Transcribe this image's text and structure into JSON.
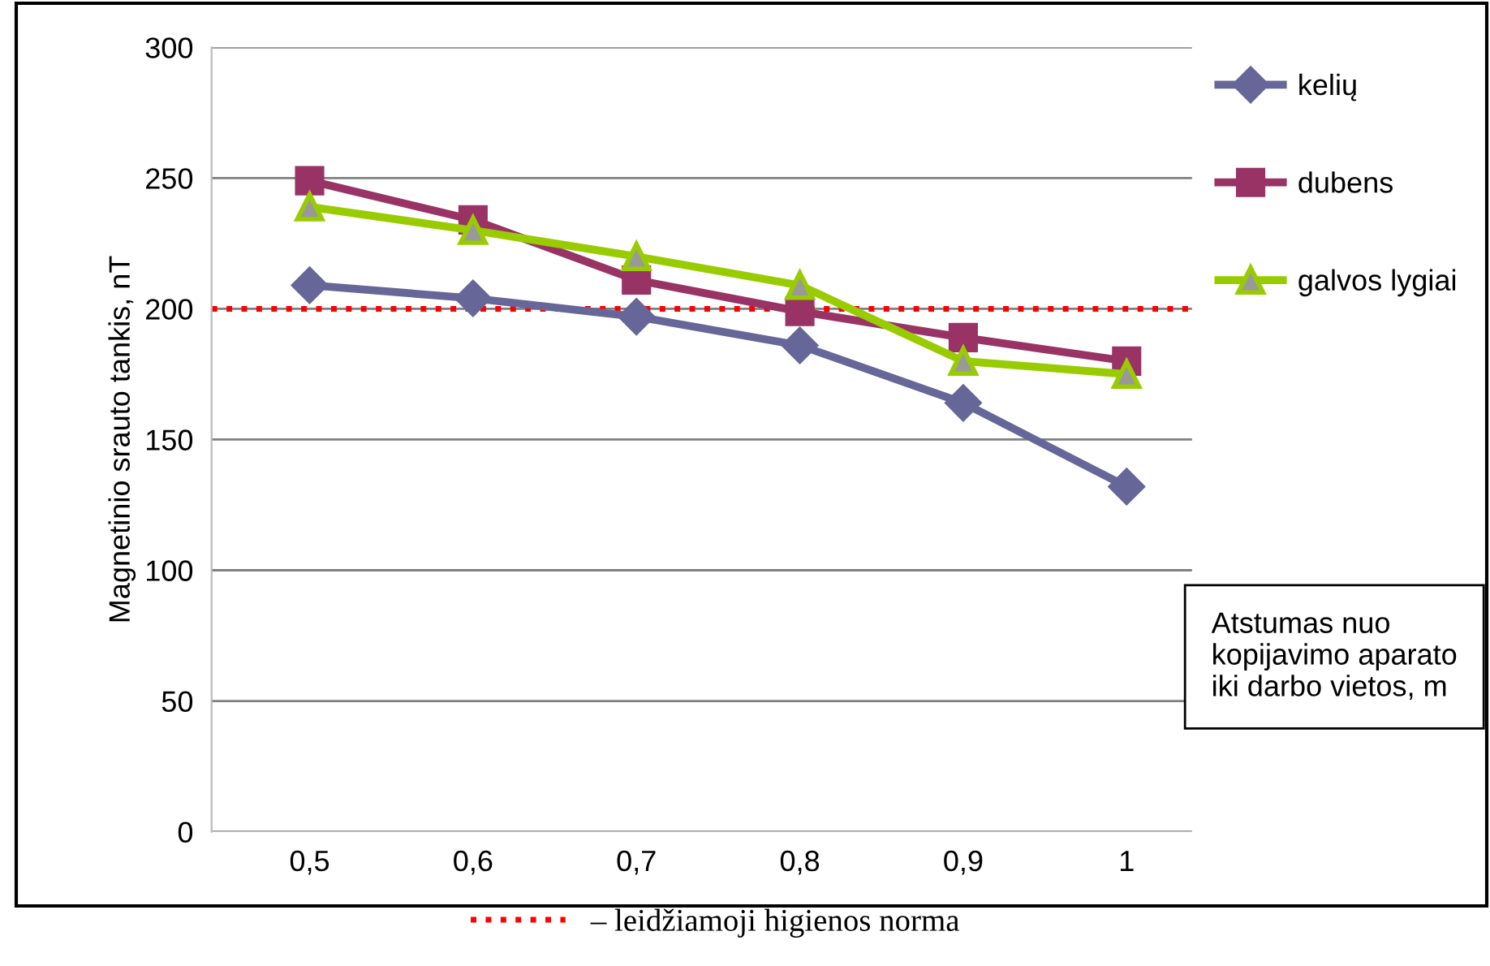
{
  "chart_data": {
    "type": "line",
    "ylabel": "Magnetinio srauto tankis, nT",
    "xlabel": "Atstumas nuo kopijavimo aparato iki darbo vietos, m",
    "categories": [
      "0,5",
      "0,6",
      "0,7",
      "0,8",
      "0,9",
      "1"
    ],
    "series": [
      {
        "name": "kelių",
        "color": "#666699",
        "marker": "diamond",
        "values": [
          209,
          204,
          197,
          186,
          164,
          132
        ]
      },
      {
        "name": "dubens",
        "color": "#993366",
        "marker": "square",
        "values": [
          249,
          234,
          211,
          199,
          189,
          180
        ]
      },
      {
        "name": "galvos lygiai",
        "color": "#99cc00",
        "marker": "triangle",
        "values": [
          239,
          230,
          220,
          209,
          180,
          175
        ]
      }
    ],
    "ylim": [
      0,
      300
    ],
    "yticks": [
      0,
      50,
      100,
      150,
      200,
      250,
      300
    ],
    "grid": "y",
    "legend": "right",
    "ref_lines": [
      {
        "axis": "y",
        "value": 200,
        "label": "– leidžiamoji higienos norma",
        "color": "#ff0000",
        "line_style": "dotted"
      }
    ]
  }
}
